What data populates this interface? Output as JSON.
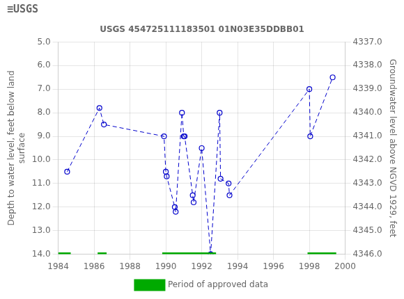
{
  "chart_data": {
    "type": "line",
    "title": "USGS 454725111183501 01N03E35DDBB01",
    "annotations": [
      "≡USGS"
    ],
    "ylabel": "Depth to water level, feet below land\nsurface",
    "y2label": "Groundwater level above NGVD 1929, feet",
    "xlim": [
      1984,
      2000
    ],
    "xticks": [
      1984,
      1986,
      1988,
      1990,
      1992,
      1994,
      1996,
      1998,
      2000
    ],
    "ylim": [
      14.0,
      5.0
    ],
    "yticks": [
      {
        "value": 5.0,
        "label": "5.0"
      },
      {
        "value": 6.0,
        "label": "6.0"
      },
      {
        "value": 7.0,
        "label": "7.0"
      },
      {
        "value": 8.0,
        "label": "8.0"
      },
      {
        "value": 9.0,
        "label": "9.0"
      },
      {
        "value": 10.0,
        "label": "10.0"
      },
      {
        "value": 11.0,
        "label": "11.0"
      },
      {
        "value": 12.0,
        "label": "12.0"
      },
      {
        "value": 13.0,
        "label": "13.0"
      },
      {
        "value": 14.0,
        "label": "14.0"
      }
    ],
    "y2lim": [
      4346.0,
      4337.0
    ],
    "y2ticks": [
      {
        "value": 4346.0,
        "label": "4346.0"
      },
      {
        "value": 4345.0,
        "label": "4345.0"
      },
      {
        "value": 4344.0,
        "label": "4344.0"
      },
      {
        "value": 4343.0,
        "label": "4343.0"
      },
      {
        "value": 4342.0,
        "label": "4342.0"
      },
      {
        "value": 4341.0,
        "label": "4341.0"
      },
      {
        "value": 4340.0,
        "label": "4340.0"
      },
      {
        "value": 4339.0,
        "label": "4339.0"
      },
      {
        "value": 4338.0,
        "label": "4338.0"
      },
      {
        "value": 4337.0,
        "label": "4337.0"
      }
    ],
    "grid": true,
    "legend": "bottom",
    "series": [
      {
        "color": "#0000cc",
        "line_style": "dashed",
        "marker": "open_circle",
        "x": [
          1984.5,
          1986.3,
          1986.55,
          1989.9,
          1990.0,
          1990.05,
          1990.5,
          1990.55,
          1990.9,
          1991.0,
          1991.05,
          1991.5,
          1991.55,
          1992.0,
          1992.5,
          1993.0,
          1993.05,
          1993.5,
          1993.55,
          1998.0,
          1998.05,
          1999.3
        ],
        "values": [
          10.5,
          7.8,
          8.5,
          9.0,
          10.5,
          10.7,
          12.0,
          12.2,
          8.0,
          9.0,
          9.0,
          11.5,
          11.8,
          9.5,
          14.0,
          8.0,
          10.8,
          11.0,
          11.5,
          7.0,
          9.0,
          6.5
        ]
      },
      {
        "name": "Period of approved data",
        "color": "#00aa00",
        "line_style": "solid",
        "marker": "none",
        "x": [
          1984.0,
          1984.7,
          null,
          1986.2,
          1986.7,
          null,
          1989.8,
          1992.8,
          null,
          1997.9,
          1999.5
        ],
        "values": [
          14.0,
          14.0,
          null,
          14.0,
          14.0,
          null,
          14.0,
          14.0,
          null,
          14.0,
          14.0
        ]
      }
    ]
  }
}
